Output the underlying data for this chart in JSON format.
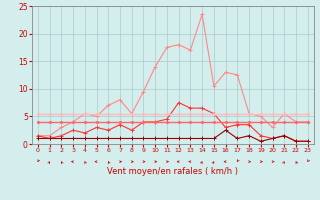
{
  "x": [
    0,
    1,
    2,
    3,
    4,
    5,
    6,
    7,
    8,
    9,
    10,
    11,
    12,
    13,
    14,
    15,
    16,
    17,
    18,
    19,
    20,
    21,
    22,
    23
  ],
  "series": [
    {
      "name": "rafales_max",
      "color": "#ff8888",
      "linewidth": 0.8,
      "marker": "+",
      "markersize": 3,
      "values": [
        1.5,
        1.5,
        3.0,
        4.0,
        5.5,
        5.0,
        7.0,
        8.0,
        5.5,
        9.5,
        14.0,
        17.5,
        18.0,
        17.0,
        23.5,
        10.5,
        13.0,
        12.5,
        5.5,
        5.0,
        3.0,
        5.5,
        4.0,
        4.0
      ]
    },
    {
      "name": "vent_moyen",
      "color": "#ff3333",
      "linewidth": 0.8,
      "marker": "+",
      "markersize": 3,
      "values": [
        1.5,
        1.0,
        1.5,
        2.5,
        2.0,
        3.0,
        2.5,
        3.5,
        2.5,
        4.0,
        4.0,
        4.5,
        7.5,
        6.5,
        6.5,
        5.5,
        3.0,
        3.5,
        3.5,
        1.5,
        1.0,
        1.5,
        0.5,
        0.5
      ]
    },
    {
      "name": "vent_min",
      "color": "#990000",
      "linewidth": 0.8,
      "marker": "+",
      "markersize": 3,
      "values": [
        1.0,
        1.0,
        1.0,
        1.0,
        1.0,
        1.0,
        1.0,
        1.0,
        1.0,
        1.0,
        1.0,
        1.0,
        1.0,
        1.0,
        1.0,
        1.0,
        2.5,
        1.0,
        1.5,
        0.5,
        1.0,
        1.5,
        0.5,
        0.5
      ]
    },
    {
      "name": "cumul_rafales",
      "color": "#ffbbbb",
      "linewidth": 1.0,
      "marker": "o",
      "markersize": 1.5,
      "values": [
        5.5,
        5.5,
        5.5,
        5.5,
        5.5,
        5.5,
        5.5,
        5.5,
        5.5,
        5.5,
        5.5,
        5.5,
        5.5,
        5.5,
        5.5,
        5.5,
        5.5,
        5.5,
        5.5,
        5.5,
        5.5,
        5.5,
        5.5,
        5.5
      ]
    },
    {
      "name": "cumul_vent",
      "color": "#ff6666",
      "linewidth": 1.0,
      "marker": "o",
      "markersize": 1.5,
      "values": [
        4.0,
        4.0,
        4.0,
        4.0,
        4.0,
        4.0,
        4.0,
        4.0,
        4.0,
        4.0,
        4.0,
        4.0,
        4.0,
        4.0,
        4.0,
        4.0,
        4.0,
        4.0,
        4.0,
        4.0,
        4.0,
        4.0,
        4.0,
        4.0
      ]
    }
  ],
  "xlabel": "Vent moyen/en rafales ( km/h )",
  "ylim": [
    0,
    25
  ],
  "yticks": [
    0,
    5,
    10,
    15,
    20,
    25
  ],
  "xticks": [
    0,
    1,
    2,
    3,
    4,
    5,
    6,
    7,
    8,
    9,
    10,
    11,
    12,
    13,
    14,
    15,
    16,
    17,
    18,
    19,
    20,
    21,
    22,
    23
  ],
  "bg_color": "#d4eded",
  "grid_color": "#a8cccc",
  "axis_color": "#888888",
  "label_color": "#cc0000",
  "tick_color": "#cc0000",
  "arrow_angles": [
    225,
    45,
    315,
    270,
    315,
    270,
    315,
    90,
    90,
    90,
    90,
    90,
    270,
    270,
    45,
    45,
    270,
    225,
    90,
    90,
    90,
    45,
    315,
    225
  ]
}
